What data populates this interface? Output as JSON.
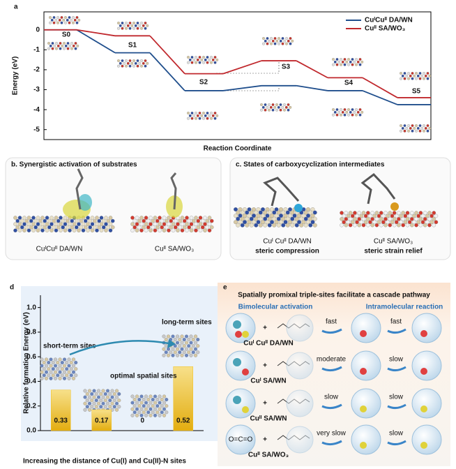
{
  "chart_data": [
    {
      "label": "a",
      "type": "line",
      "categories": [
        "S0",
        "S1",
        "S2",
        "S3",
        "S4",
        "S5"
      ],
      "series": [
        {
          "name": "CuᴵCuᴵᴵ DA/WN",
          "color": "#1f4e8c",
          "values": [
            0,
            -1.15,
            -3.05,
            -2.8,
            -3.05,
            -3.75
          ]
        },
        {
          "name": "Cuᴵᴵ SA/WO₃",
          "color": "#c0282d",
          "values": [
            0,
            -0.3,
            -2.2,
            -1.55,
            -2.4,
            -3.4
          ]
        }
      ],
      "ylabel": "Energy (eV)",
      "xlabel": "Reaction Coordinate",
      "ylim": [
        -5.5,
        0.9
      ],
      "yticks": [
        -5,
        -4,
        -3,
        -2,
        -1,
        0
      ],
      "legend": "upper right"
    },
    {
      "label": "d",
      "type": "bar",
      "categories": [
        null,
        null,
        null,
        null
      ],
      "values": [
        0.33,
        0.17,
        0,
        0.52
      ],
      "color": "#f0c020",
      "ylabel": "Relative formation Energy (eV)",
      "xlabel": "Increasing the distance of Cu(I) and Cu(II)-N sites",
      "ylim": [
        0,
        1.1
      ],
      "yticks": [
        {
          "value": 0,
          "label": "0.0"
        },
        0.2,
        0.4,
        0.6,
        0.8,
        {
          "value": 1,
          "label": "1.0"
        }
      ],
      "annotations": [
        "short-term sites",
        "optimal spatial sites",
        "long-term sites"
      ]
    }
  ],
  "panel_b": {
    "title": "b. Synergistic activation of substrates",
    "labels": [
      "CuᴵCuᴵᴵ DA/WN",
      "Cuᴵᴵ SA/WO₃"
    ]
  },
  "panel_c": {
    "title": "c. States of carboxycyclization intermediates",
    "labels": [
      "Cuᴵ Cuᴵᴵ DA/WN",
      "Cuᴵᴵ SA/WO₃"
    ],
    "captions": [
      "steric compression",
      "steric strain relief"
    ]
  },
  "panel_e": {
    "label": "e",
    "title": "Spatially promixal triple-sites facilitate a cascade pathway",
    "headers": [
      "Bimolecular activation",
      "Intramolecular reaction"
    ],
    "plus": "+",
    "co2": "O=C=O",
    "rows": [
      {
        "catalyst": "Cuᴵ Cuᴵᴵ DA/WN",
        "steps": [
          "fast",
          "fast"
        ]
      },
      {
        "catalyst": "Cuᴵ SA/WN",
        "steps": [
          "moderate",
          "slow"
        ]
      },
      {
        "catalyst": "Cuᴵᴵ SA/WN",
        "steps": [
          "slow",
          "slow"
        ]
      },
      {
        "catalyst": "Cuᴵᴵ SA/WO₃",
        "steps": [
          "very slow",
          "slow"
        ]
      }
    ]
  }
}
